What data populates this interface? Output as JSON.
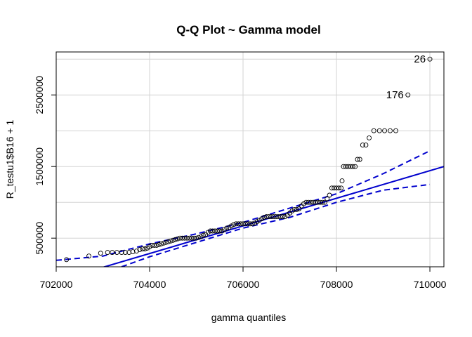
{
  "chart_data": {
    "type": "scatter",
    "title": "Q-Q Plot ~ Gamma model",
    "xlabel": "gamma quantiles",
    "ylabel": "R_testu1$B16 + 1",
    "xlim": [
      702000,
      710300
    ],
    "ylim": [
      100000,
      3100000
    ],
    "x_ticks": [
      702000,
      704000,
      706000,
      708000,
      710000
    ],
    "x_tick_labels": [
      "702000",
      "704000",
      "706000",
      "708000",
      "710000"
    ],
    "y_ticks": [
      500000,
      1500000,
      2500000
    ],
    "y_tick_labels": [
      "500000",
      "1500000",
      "2500000"
    ],
    "grid_x": [
      702000,
      704000,
      706000,
      708000,
      710000
    ],
    "grid_y": [
      500000,
      1000000,
      1500000,
      2000000,
      2500000,
      3000000
    ],
    "grid": true,
    "colors": {
      "points": "#000000",
      "fit_line": "#0000cd",
      "envelope": "#0000cd",
      "grid": "#d3d3d3",
      "frame": "#000000"
    },
    "points": [
      [
        702220,
        200000
      ],
      [
        702700,
        250000
      ],
      [
        702950,
        290000
      ],
      [
        703100,
        300000
      ],
      [
        703200,
        300000
      ],
      [
        703300,
        300000
      ],
      [
        703400,
        300000
      ],
      [
        703480,
        300000
      ],
      [
        703560,
        300000
      ],
      [
        703640,
        310000
      ],
      [
        703720,
        320000
      ],
      [
        703790,
        340000
      ],
      [
        703850,
        350000
      ],
      [
        703900,
        350000
      ],
      [
        703950,
        360000
      ],
      [
        704000,
        380000
      ],
      [
        704050,
        400000
      ],
      [
        704100,
        400000
      ],
      [
        704150,
        400000
      ],
      [
        704200,
        410000
      ],
      [
        704250,
        420000
      ],
      [
        704300,
        430000
      ],
      [
        704350,
        440000
      ],
      [
        704400,
        450000
      ],
      [
        704450,
        460000
      ],
      [
        704500,
        470000
      ],
      [
        704550,
        480000
      ],
      [
        704600,
        490000
      ],
      [
        704650,
        500000
      ],
      [
        704700,
        500000
      ],
      [
        704750,
        500000
      ],
      [
        704800,
        500000
      ],
      [
        704850,
        500000
      ],
      [
        704900,
        500000
      ],
      [
        704950,
        500000
      ],
      [
        705000,
        500000
      ],
      [
        705050,
        510000
      ],
      [
        705100,
        520000
      ],
      [
        705150,
        540000
      ],
      [
        705200,
        550000
      ],
      [
        705250,
        580000
      ],
      [
        705300,
        600000
      ],
      [
        705350,
        600000
      ],
      [
        705400,
        600000
      ],
      [
        705450,
        600000
      ],
      [
        705500,
        600000
      ],
      [
        705550,
        600000
      ],
      [
        705600,
        620000
      ],
      [
        705650,
        640000
      ],
      [
        705700,
        650000
      ],
      [
        705750,
        670000
      ],
      [
        705800,
        690000
      ],
      [
        705850,
        700000
      ],
      [
        705900,
        700000
      ],
      [
        705950,
        700000
      ],
      [
        706000,
        700000
      ],
      [
        706050,
        700000
      ],
      [
        706100,
        700000
      ],
      [
        706150,
        700000
      ],
      [
        706200,
        700000
      ],
      [
        706250,
        710000
      ],
      [
        706300,
        730000
      ],
      [
        706350,
        750000
      ],
      [
        706400,
        770000
      ],
      [
        706450,
        790000
      ],
      [
        706500,
        800000
      ],
      [
        706550,
        800000
      ],
      [
        706600,
        800000
      ],
      [
        706650,
        800000
      ],
      [
        706700,
        800000
      ],
      [
        706750,
        800000
      ],
      [
        706800,
        800000
      ],
      [
        706850,
        800000
      ],
      [
        706900,
        800000
      ],
      [
        706950,
        820000
      ],
      [
        707000,
        850000
      ],
      [
        707050,
        880000
      ],
      [
        707100,
        900000
      ],
      [
        707150,
        900000
      ],
      [
        707200,
        910000
      ],
      [
        707250,
        950000
      ],
      [
        707300,
        980000
      ],
      [
        707350,
        1000000
      ],
      [
        707400,
        1000000
      ],
      [
        707450,
        1000000
      ],
      [
        707500,
        1000000
      ],
      [
        707550,
        1000000
      ],
      [
        707600,
        1000000
      ],
      [
        707650,
        1000000
      ],
      [
        707700,
        1000000
      ],
      [
        707750,
        1000000
      ],
      [
        707800,
        1050000
      ],
      [
        707850,
        1100000
      ],
      [
        707900,
        1200000
      ],
      [
        707950,
        1200000
      ],
      [
        708000,
        1200000
      ],
      [
        708050,
        1200000
      ],
      [
        708100,
        1200000
      ],
      [
        708120,
        1300000
      ],
      [
        708150,
        1500000
      ],
      [
        708200,
        1500000
      ],
      [
        708250,
        1500000
      ],
      [
        708300,
        1500000
      ],
      [
        708350,
        1500000
      ],
      [
        708400,
        1500000
      ],
      [
        708450,
        1600000
      ],
      [
        708500,
        1600000
      ],
      [
        708560,
        1800000
      ],
      [
        708630,
        1800000
      ],
      [
        708700,
        1900000
      ],
      [
        708800,
        2000000
      ],
      [
        708920,
        2000000
      ],
      [
        709030,
        2000000
      ],
      [
        709150,
        2000000
      ],
      [
        709270,
        2000000
      ],
      [
        709530,
        2500000
      ],
      [
        710000,
        3000000
      ]
    ],
    "labeled_points": [
      {
        "label": "176",
        "x": 709530,
        "y": 2500000
      },
      {
        "label": "26",
        "x": 710000,
        "y": 3000000
      }
    ],
    "fit_line": {
      "x": [
        702000,
        710300
      ],
      "y": [
        -100000,
        1500000
      ]
    },
    "envelope_upper": {
      "x": [
        702000,
        703000,
        704000,
        705000,
        706000,
        707000,
        708000,
        709000,
        710000
      ],
      "y": [
        190000,
        250000,
        420000,
        560000,
        720000,
        920000,
        1120000,
        1400000,
        1720000
      ]
    },
    "envelope_lower": {
      "x": [
        703400,
        704000,
        705000,
        706000,
        707000,
        708000,
        709000,
        710000
      ],
      "y": [
        100000,
        240000,
        440000,
        640000,
        790000,
        1000000,
        1170000,
        1250000
      ]
    }
  }
}
